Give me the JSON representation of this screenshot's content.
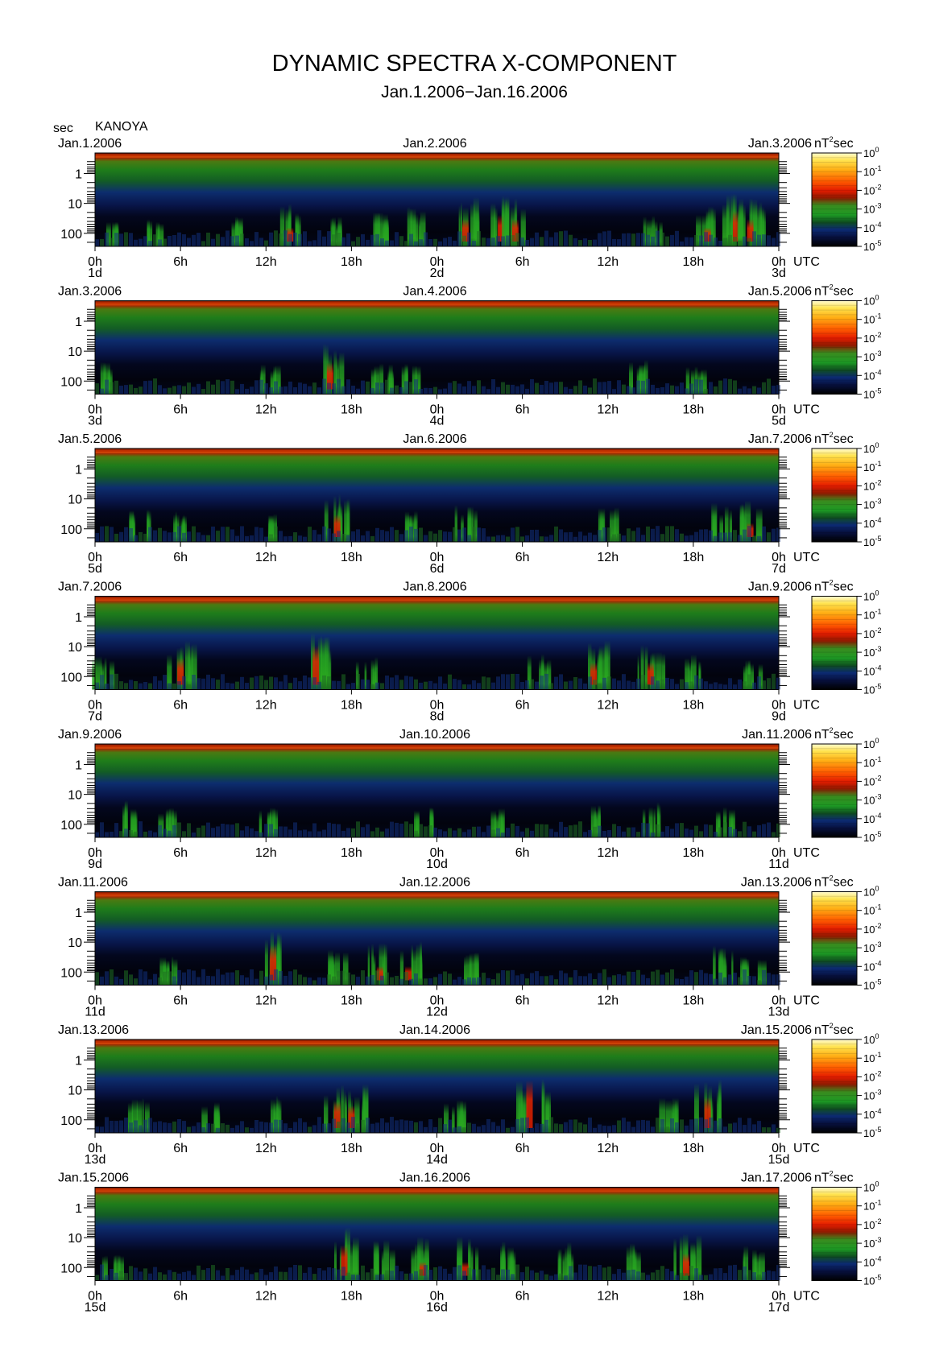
{
  "figure": {
    "title": "DYNAMIC SPECTRA X-COMPONENT",
    "subtitle": "Jan.1.2006−Jan.16.2006",
    "y_unit": "sec",
    "station": "KANOYA",
    "time_unit": "UTC",
    "colorbar_unit": "nT",
    "colorbar_unit_sup": "2",
    "colorbar_unit_suffix": "sec"
  },
  "chart_data": {
    "type": "heatmap",
    "title": "DYNAMIC SPECTRA X-COMPONENT",
    "subtitle": "Jan.1.2006−Jan.16.2006",
    "ylabel": "sec",
    "xlabel": "UTC",
    "y_scale": "log",
    "y_ticks": [
      "1",
      "10",
      "100"
    ],
    "x_ticks": [
      "0h",
      "6h",
      "12h",
      "18h",
      "0h",
      "6h",
      "12h",
      "18h",
      "0h"
    ],
    "colorbar": {
      "unit": "nT²sec",
      "scale": "log",
      "ticks": [
        {
          "base": "10",
          "exp": "0"
        },
        {
          "base": "10",
          "exp": "-1"
        },
        {
          "base": "10",
          "exp": "-2"
        },
        {
          "base": "10",
          "exp": "-3"
        },
        {
          "base": "10",
          "exp": "-4"
        },
        {
          "base": "10",
          "exp": "-5"
        }
      ],
      "colors": [
        "#fffbd0",
        "#ffd21a",
        "#ff7a00",
        "#ef2200",
        "#b01800",
        "#2aa51e",
        "#11661a",
        "#0c1f66",
        "#05092a",
        "#000000"
      ]
    },
    "panels": [
      {
        "date_left": "Jan.1.2006",
        "date_mid": "Jan.2.2006",
        "date_right": "Jan.3.2006",
        "day_left": "1d",
        "day_mid": "2d",
        "day_right": "3d",
        "events": [
          [
            1,
            0.2
          ],
          [
            4,
            0.25
          ],
          [
            10,
            0.3
          ],
          [
            13.7,
            0.6
          ],
          [
            17,
            0.3
          ],
          [
            20,
            0.5
          ],
          [
            22,
            0.55
          ],
          [
            26,
            0.7
          ],
          [
            28.5,
            0.75
          ],
          [
            29.5,
            0.7
          ],
          [
            39,
            0.3
          ],
          [
            43,
            0.6
          ],
          [
            45,
            0.8
          ],
          [
            46,
            0.7
          ]
        ]
      },
      {
        "date_left": "Jan.3.2006",
        "date_mid": "Jan.4.2006",
        "date_right": "Jan.5.2006",
        "day_left": "3d",
        "day_mid": "4d",
        "day_right": "5d",
        "events": [
          [
            0.5,
            0.35
          ],
          [
            12,
            0.3
          ],
          [
            16.5,
            0.75
          ],
          [
            20,
            0.3
          ],
          [
            22,
            0.3
          ],
          [
            38,
            0.4
          ],
          [
            42,
            0.3
          ]
        ]
      },
      {
        "date_left": "Jan.5.2006",
        "date_mid": "Jan.6.2006",
        "date_right": "Jan.7.2006",
        "day_left": "5d",
        "day_mid": "6d",
        "day_right": "7d",
        "events": [
          [
            3,
            0.35
          ],
          [
            6,
            0.3
          ],
          [
            12,
            0.3
          ],
          [
            17,
            0.7
          ],
          [
            22,
            0.4
          ],
          [
            26,
            0.45
          ],
          [
            36,
            0.4
          ],
          [
            44,
            0.5
          ],
          [
            46,
            0.6
          ]
        ]
      },
      {
        "date_left": "Jan.7.2006",
        "date_mid": "Jan.8.2006",
        "date_right": "Jan.9.2006",
        "day_left": "7d",
        "day_mid": "8d",
        "day_right": "9d",
        "events": [
          [
            0.5,
            0.4
          ],
          [
            6,
            0.75
          ],
          [
            15.5,
            0.9
          ],
          [
            19,
            0.4
          ],
          [
            31,
            0.45
          ],
          [
            35,
            0.7
          ],
          [
            39,
            0.7
          ],
          [
            42,
            0.4
          ],
          [
            46,
            0.3
          ]
        ]
      },
      {
        "date_left": "Jan.9.2006",
        "date_mid": "Jan.10.2006",
        "date_right": "Jan.11.2006",
        "day_left": "9d",
        "day_mid": "10d",
        "day_right": "11d",
        "events": [
          [
            2,
            0.45
          ],
          [
            5,
            0.3
          ],
          [
            12,
            0.35
          ],
          [
            23,
            0.3
          ],
          [
            28,
            0.3
          ],
          [
            35,
            0.45
          ],
          [
            39,
            0.4
          ],
          [
            44,
            0.3
          ]
        ]
      },
      {
        "date_left": "Jan.11.2006",
        "date_mid": "Jan.12.2006",
        "date_right": "Jan.13.2006",
        "day_left": "11d",
        "day_mid": "12d",
        "day_right": "13d",
        "events": [
          [
            5,
            0.3
          ],
          [
            12.5,
            0.85
          ],
          [
            17,
            0.4
          ],
          [
            20,
            0.6
          ],
          [
            22,
            0.6
          ],
          [
            26,
            0.4
          ],
          [
            44,
            0.5
          ],
          [
            46,
            0.4
          ]
        ]
      },
      {
        "date_left": "Jan.13.2006",
        "date_mid": "Jan.14.2006",
        "date_right": "Jan.15.2006",
        "day_left": "13d",
        "day_mid": "14d",
        "day_right": "15d",
        "events": [
          [
            3,
            0.4
          ],
          [
            8,
            0.3
          ],
          [
            13,
            0.45
          ],
          [
            17,
            0.75
          ],
          [
            18,
            0.7
          ],
          [
            25,
            0.4
          ],
          [
            30.5,
            1.0
          ],
          [
            40,
            0.45
          ],
          [
            43,
            0.8
          ]
        ]
      },
      {
        "date_left": "Jan.15.2006",
        "date_mid": "Jan.16.2006",
        "date_right": "Jan.17.2006",
        "day_left": "15d",
        "day_mid": "16d",
        "day_right": "17d",
        "events": [
          [
            1,
            0.3
          ],
          [
            17.5,
            0.8
          ],
          [
            20,
            0.55
          ],
          [
            23,
            0.6
          ],
          [
            26,
            0.6
          ],
          [
            29,
            0.55
          ],
          [
            33,
            0.5
          ],
          [
            38,
            0.45
          ],
          [
            41.5,
            0.7
          ],
          [
            46,
            0.4
          ]
        ]
      }
    ]
  }
}
